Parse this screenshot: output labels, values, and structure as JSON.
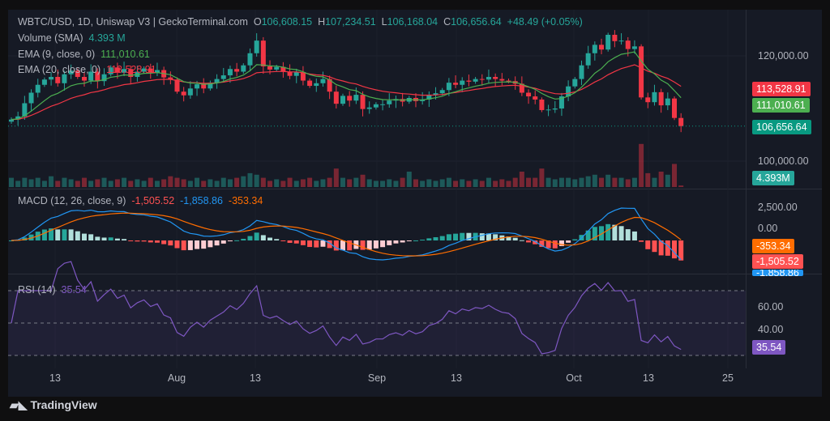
{
  "header": {
    "symbol": "WBTC/USD, 1D, Uniswap V3 | GeckoTerminal.com",
    "o_label": "O",
    "o": "106,608.15",
    "h_label": "H",
    "h": "107,234.51",
    "l_label": "L",
    "l": "106,168.04",
    "c_label": "C",
    "c": "106,656.64",
    "change": "+48.49 (+0.05%)"
  },
  "legends": {
    "volume": "Volume (SMA)",
    "volume_value": "4.393 M",
    "ema9": "EMA (9, close, 0)",
    "ema9_value": "111,010.61",
    "ema20": "EMA (20, close, 0)",
    "ema20_value": "113,528.91",
    "macd": "MACD (12, 26, close, 9)",
    "macd_hist": "-1,505.52",
    "macd_line": "-1,858.86",
    "macd_signal": "-353.34",
    "rsi": "RSI (14)",
    "rsi_value": "35.54"
  },
  "price_axis": [
    "120,000.00",
    "100,000.00"
  ],
  "macd_axis": [
    "2,500.00",
    "0.00"
  ],
  "rsi_axis": [
    "60.00",
    "40.00"
  ],
  "tags": {
    "ema20": "113,528.91",
    "ema9": "111,010.61",
    "last": "106,656.64",
    "volume": "4.393M",
    "signal": "-353.34",
    "hist": "-1,505.52",
    "macd": "-1,858.86",
    "rsi": "35.54"
  },
  "x_axis": [
    "13",
    "Aug",
    "13",
    "Sep",
    "13",
    "Oct",
    "13",
    "25"
  ],
  "branding": "TradingView",
  "colors": {
    "up": "#26a69a",
    "down": "#f23645",
    "ema9": "#4caf50",
    "ema20": "#f23645",
    "macd": "#2196f3",
    "signal": "#ff6d00",
    "rsi": "#7e57c2"
  },
  "chart_data": {
    "type": "candlestick",
    "x_start": "Jul 8",
    "x_end": "Oct 17",
    "ylim": [
      96000,
      126000
    ],
    "close": [
      107.9,
      108.5,
      111,
      113,
      114.5,
      115.5,
      116,
      114.8,
      116.5,
      117.2,
      116,
      115.3,
      117,
      115.2,
      116.5,
      117.8,
      116.8,
      117.5,
      116,
      117,
      117.6,
      116.8,
      117.3,
      115.9,
      115.5,
      113.2,
      112.5,
      113.8,
      114.6,
      113.8,
      114.9,
      115.6,
      116.3,
      117.5,
      117,
      118.2,
      120.5,
      122.9,
      118,
      117.4,
      117.9,
      117,
      116.2,
      116.9,
      115.3,
      114.3,
      114.8,
      115.6,
      113.2,
      110.9,
      112.4,
      111.5,
      112.6,
      109.9,
      110.2,
      110.8,
      110.8,
      111.5,
      111.8,
      111.3,
      112,
      111.4,
      111.7,
      112.6,
      112.9,
      113.5,
      114.9,
      114.5,
      115.3,
      115.1,
      115.6,
      115.5,
      116,
      115.6,
      115.3,
      115.2,
      114.7,
      113,
      112.3,
      111.7,
      109.7,
      109.8,
      110,
      112.3,
      114.2,
      115.6,
      118.2,
      120.5,
      122.1,
      121.2,
      124,
      122.8,
      122.9,
      121.3,
      121.8,
      112.1,
      111.2,
      113.1,
      110.6,
      111.9,
      108.2,
      106.66
    ],
    "close_unit": "thousand USD",
    "volume": [
      3,
      2,
      3,
      2.5,
      3,
      2,
      3.5,
      2,
      3,
      2.5,
      2,
      3,
      2,
      2.5,
      3,
      2,
      2.5,
      3,
      2,
      2.5,
      2,
      3,
      2,
      2.5,
      3.5,
      3,
      2.5,
      2,
      3,
      2,
      2.5,
      2,
      3,
      2.5,
      3,
      3.5,
      4.5,
      4,
      3,
      2,
      2.5,
      2,
      3,
      2,
      2.5,
      3,
      2,
      2.5,
      3,
      6,
      3,
      2.5,
      3,
      4,
      2.5,
      2,
      2,
      2.5,
      2,
      3,
      5,
      2.5,
      2,
      2.5,
      2,
      2.5,
      3,
      2,
      2.5,
      2,
      2.5,
      2,
      3,
      2,
      2.5,
      2,
      3,
      5,
      3,
      3,
      6,
      3,
      2.5,
      3,
      3,
      2.5,
      3,
      3.5,
      4,
      3,
      4,
      3,
      3,
      2.5,
      3,
      14,
      4.5,
      3,
      5,
      4,
      7.5,
      0.5
    ],
    "volume_unit": "million"
  }
}
